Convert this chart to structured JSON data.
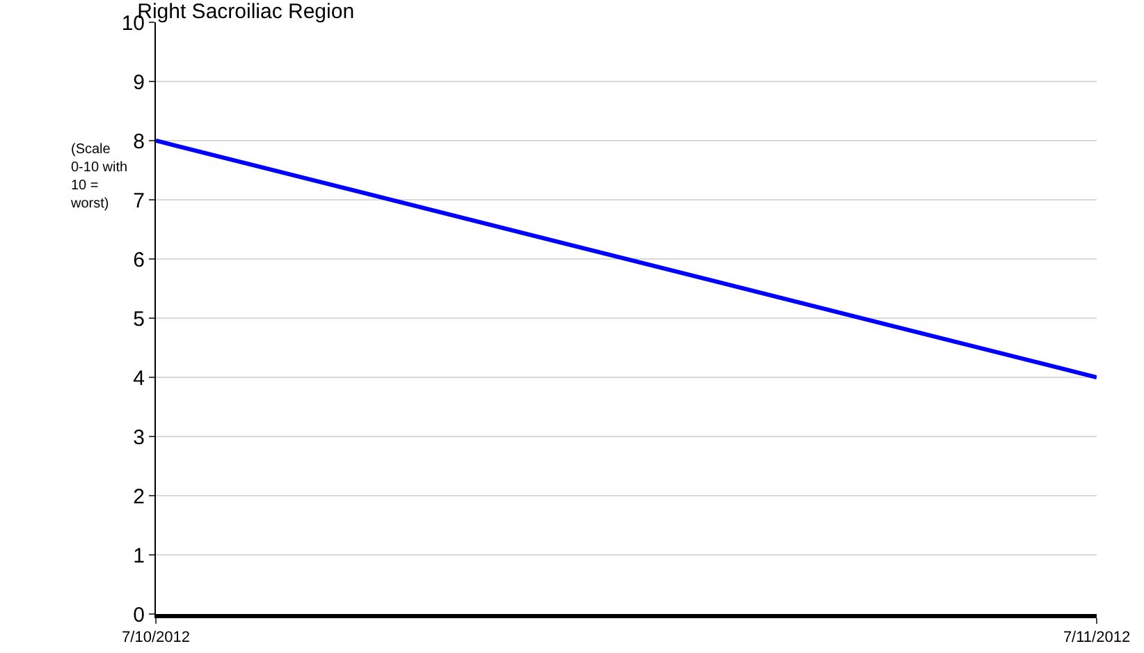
{
  "chart_data": {
    "type": "line",
    "title": "Right Sacroiliac Region",
    "ylabel": "(Scale 0-10 with 10 = worst)",
    "x": [
      "2012-07-10",
      "2012-07-11"
    ],
    "series": [
      {
        "color": "#0000ff",
        "values": [
          8,
          4
        ]
      }
    ],
    "xlim": [
      "2012-07-10",
      "2012-07-11"
    ],
    "xticks": [
      {
        "value": "2012-07-10",
        "label": "7/10/2012"
      },
      {
        "value": "2012-07-11",
        "label": "7/11/2012"
      }
    ],
    "ylim": [
      0,
      10
    ],
    "yticks": [
      0,
      1,
      2,
      3,
      4,
      5,
      6,
      7,
      8,
      9,
      10
    ],
    "grid": true,
    "marker": "none",
    "line_style": "solid"
  }
}
